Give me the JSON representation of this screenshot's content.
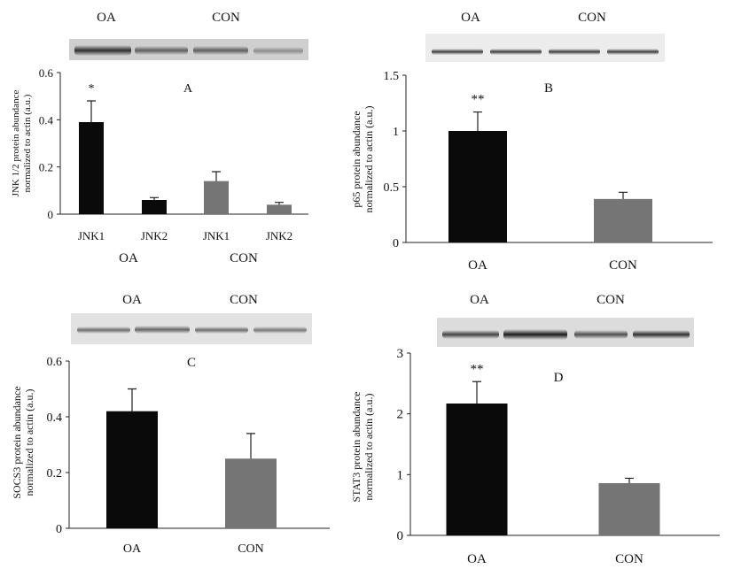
{
  "colors": {
    "oa_bar": "#0a0a0a",
    "con_bar": "#757575",
    "axis": "#222222",
    "background": "#ffffff"
  },
  "chart_data": [
    {
      "type": "bar",
      "panel": "A",
      "title": "A",
      "ylabel": [
        "JNK 1/2 protein abundance",
        "normalized to actin (a.u.)"
      ],
      "ylim": [
        0,
        0.6
      ],
      "yticks": [
        "0",
        "0.2",
        "0.4",
        "0.6"
      ],
      "categories": [
        "JNK1",
        "JNK2",
        "JNK1",
        "JNK2"
      ],
      "groups": [
        "OA",
        "CON"
      ],
      "group_of_bar": [
        0,
        0,
        1,
        1
      ],
      "values": [
        0.39,
        0.06,
        0.14,
        0.04
      ],
      "errors": [
        0.09,
        0.01,
        0.04,
        0.01
      ],
      "significance": [
        "*",
        "",
        "",
        ""
      ],
      "blot_labels": [
        "OA",
        "CON"
      ],
      "grid": false
    },
    {
      "type": "bar",
      "panel": "B",
      "title": "B",
      "ylabel": [
        "p65 protein abundance",
        "normalized to actin (a.u.)"
      ],
      "ylim": [
        0,
        1.5
      ],
      "yticks": [
        "0",
        "0.5",
        "1",
        "1.5"
      ],
      "categories": [
        "OA",
        "CON"
      ],
      "values": [
        1.0,
        0.39
      ],
      "errors": [
        0.17,
        0.06
      ],
      "significance": [
        "**",
        ""
      ],
      "blot_labels": [
        "OA",
        "CON"
      ],
      "grid": false
    },
    {
      "type": "bar",
      "panel": "C",
      "title": "C",
      "ylabel": [
        "SOCS3 protein abundance",
        "normalized to actin (a.u.)"
      ],
      "ylim": [
        0,
        0.6
      ],
      "yticks": [
        "0",
        "0.2",
        "0.4",
        "0.6"
      ],
      "categories": [
        "OA",
        "CON"
      ],
      "values": [
        0.42,
        0.25
      ],
      "errors": [
        0.08,
        0.09
      ],
      "significance": [
        "",
        ""
      ],
      "blot_labels": [
        "OA",
        "CON"
      ],
      "grid": false
    },
    {
      "type": "bar",
      "panel": "D",
      "title": "D",
      "ylabel": [
        "STAT3 protein abundance",
        "normalized to actin (a.u.)"
      ],
      "ylim": [
        0,
        3
      ],
      "yticks": [
        "0",
        "1",
        "2",
        "3"
      ],
      "categories": [
        "OA",
        "CON"
      ],
      "values": [
        2.17,
        0.86
      ],
      "errors": [
        0.36,
        0.08
      ],
      "significance": [
        "**",
        ""
      ],
      "blot_labels": [
        "OA",
        "CON"
      ],
      "grid": false
    }
  ]
}
